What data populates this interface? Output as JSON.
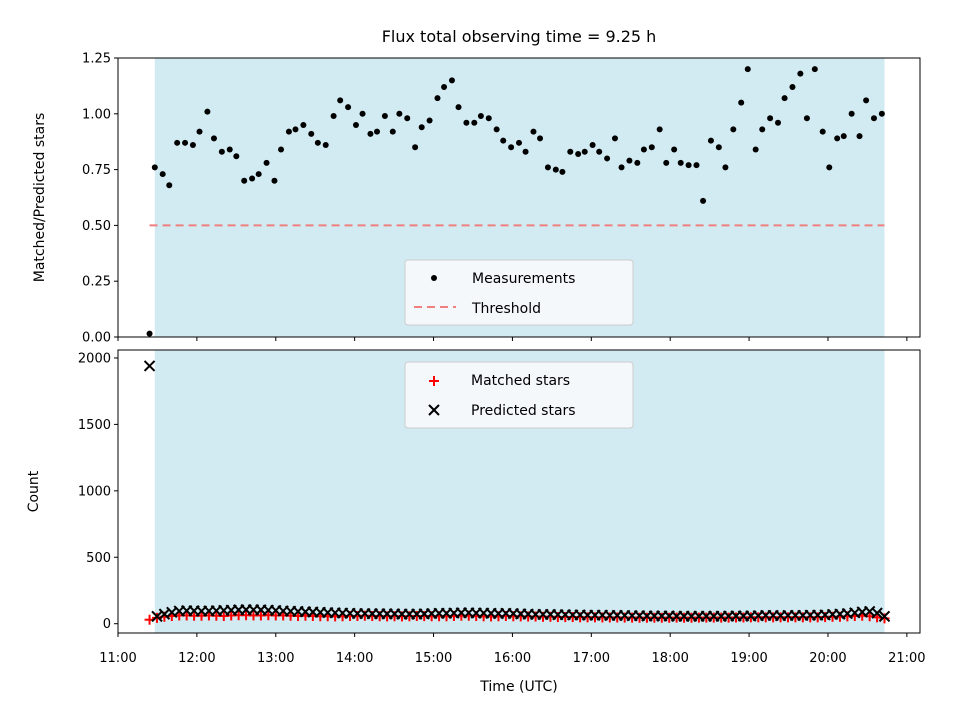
{
  "colors": {
    "shade": "#add8e6",
    "threshold": "#f08080",
    "measure": "#000000",
    "matched": "#ff0000",
    "predicted": "#000000",
    "legend_bg": "#f4f8fb"
  },
  "chart_data": [
    {
      "type": "scatter",
      "title": "Flux total observing time = 9.25 h",
      "xlabel": "",
      "ylabel": "Matched/Predicted stars",
      "xlim": [
        "11:00",
        "21:10"
      ],
      "ylim": [
        0,
        1.25
      ],
      "yticks": [
        "0.00",
        "0.25",
        "0.50",
        "0.75",
        "1.00",
        "1.25"
      ],
      "shaded_span": [
        "11:28",
        "20:43"
      ],
      "legend": {
        "placement": "lower center",
        "entries": [
          "Measurements",
          "Threshold"
        ]
      },
      "series": [
        {
          "name": "Measurements",
          "marker": "dot",
          "x": [
            "11:24",
            "11:28",
            "11:34",
            "11:39",
            "11:45",
            "11:51",
            "11:57",
            "12:02",
            "12:08",
            "12:13",
            "12:19",
            "12:25",
            "12:30",
            "12:36",
            "12:42",
            "12:47",
            "12:53",
            "12:59",
            "13:04",
            "13:10",
            "13:15",
            "13:21",
            "13:27",
            "13:32",
            "13:38",
            "13:44",
            "13:49",
            "13:55",
            "14:01",
            "14:06",
            "14:12",
            "14:17",
            "14:23",
            "14:29",
            "14:34",
            "14:40",
            "14:46",
            "14:51",
            "14:57",
            "15:03",
            "15:08",
            "15:14",
            "15:19",
            "15:25",
            "15:31",
            "15:36",
            "15:42",
            "15:48",
            "15:53",
            "15:59",
            "16:05",
            "16:10",
            "16:16",
            "16:21",
            "16:27",
            "16:33",
            "16:38",
            "16:44",
            "16:50",
            "16:55",
            "17:01",
            "17:06",
            "17:12",
            "17:18",
            "17:23",
            "17:29",
            "17:35",
            "17:40",
            "17:46",
            "17:52",
            "17:57",
            "18:03",
            "18:08",
            "18:14",
            "18:20",
            "18:25",
            "18:31",
            "18:37",
            "18:42",
            "18:48",
            "18:54",
            "18:59",
            "19:05",
            "19:10",
            "19:16",
            "19:22",
            "19:27",
            "19:33",
            "19:39",
            "19:44",
            "19:50",
            "19:56",
            "20:01",
            "20:07",
            "20:12",
            "20:18",
            "20:24",
            "20:29",
            "20:35",
            "20:41"
          ],
          "values": [
            0.015,
            0.76,
            0.73,
            0.68,
            0.87,
            0.87,
            0.86,
            0.92,
            1.01,
            0.89,
            0.83,
            0.84,
            0.81,
            0.7,
            0.71,
            0.73,
            0.78,
            0.7,
            0.84,
            0.92,
            0.93,
            0.95,
            0.91,
            0.87,
            0.86,
            0.99,
            1.06,
            1.03,
            0.95,
            1.0,
            0.91,
            0.92,
            0.99,
            0.92,
            1.0,
            0.98,
            0.85,
            0.94,
            0.97,
            1.07,
            1.12,
            1.15,
            1.03,
            0.96,
            0.96,
            0.99,
            0.98,
            0.93,
            0.88,
            0.85,
            0.87,
            0.83,
            0.92,
            0.89,
            0.76,
            0.75,
            0.74,
            0.83,
            0.82,
            0.83,
            0.86,
            0.83,
            0.8,
            0.89,
            0.76,
            0.79,
            0.78,
            0.84,
            0.85,
            0.93,
            0.78,
            0.84,
            0.78,
            0.77,
            0.77,
            0.61,
            0.88,
            0.85,
            0.76,
            0.93,
            1.05,
            1.2,
            0.84,
            0.93,
            0.98,
            0.96,
            1.07,
            1.12,
            1.18,
            0.98,
            1.2,
            0.92,
            0.76,
            0.89,
            0.9,
            1.0,
            0.9,
            1.06,
            0.98,
            1.0
          ]
        },
        {
          "name": "Threshold",
          "style": "dashed",
          "x": [
            "11:24",
            "20:43"
          ],
          "values": [
            0.5,
            0.5
          ]
        }
      ]
    },
    {
      "type": "scatter",
      "title": "",
      "xlabel": "Time (UTC)",
      "ylabel": "Count",
      "xlim": [
        "11:00",
        "21:10"
      ],
      "xticks": [
        "11:00",
        "12:00",
        "13:00",
        "14:00",
        "15:00",
        "16:00",
        "17:00",
        "18:00",
        "19:00",
        "20:00",
        "21:00"
      ],
      "ylim": [
        -70,
        2060
      ],
      "yticks": [
        "0",
        "500",
        "1000",
        "1500",
        "2000"
      ],
      "shaded_span": [
        "11:28",
        "20:43"
      ],
      "legend": {
        "placement": "upper center",
        "entries": [
          "Matched stars",
          "Predicted stars"
        ]
      },
      "series": [
        {
          "name": "Matched stars",
          "marker": "plus",
          "x_range": [
            "11:24",
            "20:43"
          ],
          "values": [
            30,
            44,
            52,
            58,
            62,
            62,
            60,
            60,
            62,
            60,
            58,
            62,
            64,
            64,
            62,
            62,
            64,
            62,
            62,
            60,
            58,
            60,
            58,
            56,
            56,
            55,
            56,
            58,
            58,
            60,
            58,
            56,
            55,
            56,
            55,
            56,
            58,
            57,
            56,
            56,
            56,
            58,
            60,
            60,
            58,
            56,
            55,
            56,
            58,
            56,
            55,
            54,
            54,
            52,
            52,
            50,
            50,
            50,
            48,
            48,
            48,
            47,
            47,
            47,
            46,
            46,
            45,
            45,
            45,
            45,
            45,
            46,
            45,
            45,
            46,
            46,
            46,
            46,
            46,
            47,
            47,
            48,
            48,
            48,
            48,
            48,
            48,
            48,
            48,
            48,
            48,
            50,
            52,
            52,
            55,
            58,
            60,
            56,
            48,
            40
          ]
        },
        {
          "name": "Predicted stars",
          "marker": "x",
          "x_range": [
            "11:24",
            "20:43"
          ],
          "values": [
            1940,
            55,
            72,
            86,
            95,
            98,
            97,
            95,
            96,
            98,
            100,
            102,
            104,
            105,
            105,
            104,
            102,
            100,
            96,
            94,
            92,
            90,
            88,
            86,
            84,
            82,
            80,
            78,
            76,
            76,
            75,
            75,
            74,
            74,
            72,
            72,
            72,
            74,
            76,
            78,
            78,
            80,
            82,
            82,
            80,
            80,
            78,
            76,
            78,
            76,
            74,
            72,
            70,
            70,
            70,
            68,
            68,
            66,
            66,
            64,
            64,
            64,
            62,
            62,
            62,
            60,
            60,
            58,
            58,
            58,
            58,
            56,
            56,
            56,
            56,
            56,
            56,
            56,
            57,
            58,
            58,
            58,
            60,
            62,
            62,
            60,
            62,
            62,
            62,
            64,
            64,
            66,
            70,
            72,
            76,
            82,
            88,
            92,
            80,
            55
          ]
        }
      ]
    }
  ]
}
